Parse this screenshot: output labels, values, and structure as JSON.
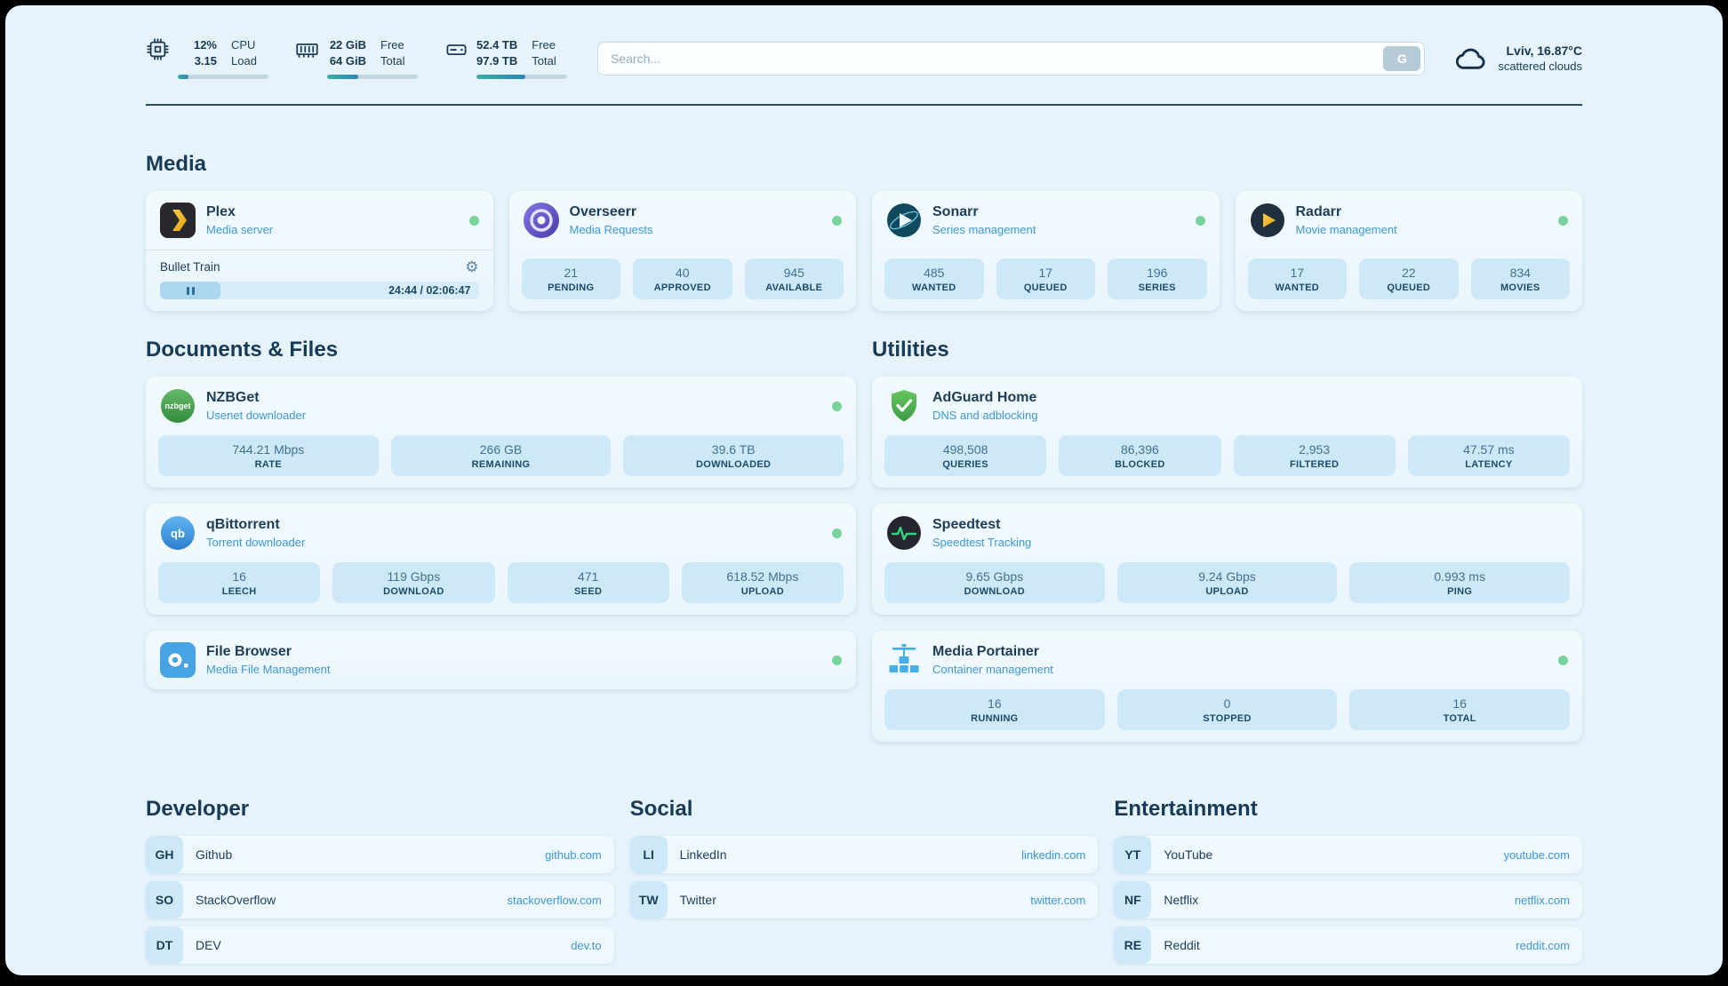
{
  "header": {
    "cpu": {
      "value_top": "12%",
      "value_bottom": "3.15",
      "label_top": "CPU",
      "label_bottom": "Load",
      "bar_percent": 12
    },
    "ram": {
      "value_top": "22 GiB",
      "value_bottom": "64 GiB",
      "label_top": "Free",
      "label_bottom": "Total",
      "bar_percent": 34
    },
    "disk": {
      "value_top": "52.4 TB",
      "value_bottom": "97.9 TB",
      "label_top": "Free",
      "label_bottom": "Total",
      "bar_percent": 54
    },
    "search": {
      "placeholder": "Search...",
      "engine_button": "G"
    },
    "weather": {
      "location": "Lviv, 16.87°C",
      "condition": "scattered clouds"
    }
  },
  "media": {
    "title": "Media",
    "plex": {
      "name": "Plex",
      "subtitle": "Media server",
      "online": true,
      "now_playing": {
        "title": "Bullet Train",
        "time": "24:44 / 02:06:47",
        "progress_percent": 19
      }
    },
    "overseerr": {
      "name": "Overseerr",
      "subtitle": "Media Requests",
      "online": true,
      "stats": [
        {
          "value": "21",
          "label": "PENDING"
        },
        {
          "value": "40",
          "label": "APPROVED"
        },
        {
          "value": "945",
          "label": "AVAILABLE"
        }
      ]
    },
    "sonarr": {
      "name": "Sonarr",
      "subtitle": "Series management",
      "online": true,
      "stats": [
        {
          "value": "485",
          "label": "WANTED"
        },
        {
          "value": "17",
          "label": "QUEUED"
        },
        {
          "value": "196",
          "label": "SERIES"
        }
      ]
    },
    "radarr": {
      "name": "Radarr",
      "subtitle": "Movie management",
      "online": true,
      "stats": [
        {
          "value": "17",
          "label": "WANTED"
        },
        {
          "value": "22",
          "label": "QUEUED"
        },
        {
          "value": "834",
          "label": "MOVIES"
        }
      ]
    }
  },
  "documents": {
    "title": "Documents & Files",
    "nzbget": {
      "name": "NZBGet",
      "subtitle": "Usenet downloader",
      "online": true,
      "stats": [
        {
          "value": "744.21 Mbps",
          "label": "RATE"
        },
        {
          "value": "266 GB",
          "label": "REMAINING"
        },
        {
          "value": "39.6 TB",
          "label": "DOWNLOADED"
        }
      ]
    },
    "qbittorrent": {
      "name": "qBittorrent",
      "subtitle": "Torrent downloader",
      "online": true,
      "stats": [
        {
          "value": "16",
          "label": "LEECH"
        },
        {
          "value": "119 Gbps",
          "label": "DOWNLOAD"
        },
        {
          "value": "471",
          "label": "SEED"
        },
        {
          "value": "618.52 Mbps",
          "label": "UPLOAD"
        }
      ]
    },
    "filebrowser": {
      "name": "File Browser",
      "subtitle": "Media File Management",
      "online": true
    }
  },
  "utilities": {
    "title": "Utilities",
    "adguard": {
      "name": "AdGuard Home",
      "subtitle": "DNS and adblocking",
      "online": false,
      "stats": [
        {
          "value": "498,508",
          "label": "QUERIES"
        },
        {
          "value": "86,396",
          "label": "BLOCKED"
        },
        {
          "value": "2,953",
          "label": "FILTERED"
        },
        {
          "value": "47.57 ms",
          "label": "LATENCY"
        }
      ]
    },
    "speedtest": {
      "name": "Speedtest",
      "subtitle": "Speedtest Tracking",
      "online": false,
      "stats": [
        {
          "value": "9.65 Gbps",
          "label": "DOWNLOAD"
        },
        {
          "value": "9.24 Gbps",
          "label": "UPLOAD"
        },
        {
          "value": "0.993 ms",
          "label": "PING"
        }
      ]
    },
    "portainer": {
      "name": "Media Portainer",
      "subtitle": "Container management",
      "online": true,
      "stats": [
        {
          "value": "16",
          "label": "RUNNING"
        },
        {
          "value": "0",
          "label": "STOPPED"
        },
        {
          "value": "16",
          "label": "TOTAL"
        }
      ]
    }
  },
  "bookmarks": {
    "developer": {
      "title": "Developer",
      "items": [
        {
          "abbr": "GH",
          "name": "Github",
          "url": "github.com"
        },
        {
          "abbr": "SO",
          "name": "StackOverflow",
          "url": "stackoverflow.com"
        },
        {
          "abbr": "DT",
          "name": "DEV",
          "url": "dev.to"
        }
      ]
    },
    "social": {
      "title": "Social",
      "items": [
        {
          "abbr": "LI",
          "name": "LinkedIn",
          "url": "linkedin.com"
        },
        {
          "abbr": "TW",
          "name": "Twitter",
          "url": "twitter.com"
        }
      ]
    },
    "entertainment": {
      "title": "Entertainment",
      "items": [
        {
          "abbr": "YT",
          "name": "YouTube",
          "url": "youtube.com"
        },
        {
          "abbr": "NF",
          "name": "Netflix",
          "url": "netflix.com"
        },
        {
          "abbr": "RE",
          "name": "Reddit",
          "url": "reddit.com"
        }
      ]
    }
  },
  "colors": {
    "page_bg": "#e6f3fb",
    "accent_blue": "#3e96d6",
    "status_online": "#79d49c",
    "stat_box_bg": "#cde9f8",
    "heading_text": "#173a56"
  }
}
